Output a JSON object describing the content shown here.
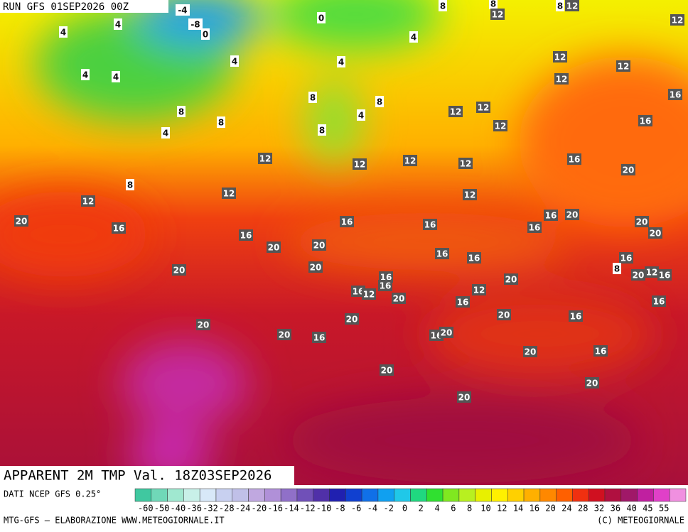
{
  "header": {
    "run": "RUN GFS 01SEP2026 00Z"
  },
  "map": {
    "title": "APPARENT 2M TMP Val. 18Z03SEP2026",
    "labels": [
      "-4",
      "-8",
      "0",
      "0",
      "8",
      "8",
      "12",
      "8",
      "12",
      "12",
      "4",
      "4",
      "4",
      "4",
      "4",
      "4",
      "4",
      "12",
      "12",
      "12",
      "16",
      "8",
      "8",
      "8",
      "8",
      "4",
      "4",
      "12",
      "12",
      "12",
      "16",
      "8",
      "12",
      "12",
      "12",
      "12",
      "16",
      "20",
      "8",
      "12",
      "12",
      "12",
      "20",
      "16",
      "16",
      "16",
      "16",
      "20",
      "16",
      "20",
      "20",
      "16",
      "20",
      "20",
      "16",
      "16",
      "16",
      "20",
      "20",
      "16",
      "8",
      "20",
      "12",
      "16",
      "16",
      "12",
      "16",
      "20",
      "12",
      "20",
      "16",
      "16",
      "20",
      "16",
      "20",
      "20",
      "20",
      "16",
      "16",
      "20",
      "20",
      "16",
      "20",
      "20",
      "20"
    ]
  },
  "footer": {
    "source": "DATI NCEP GFS 0.25°",
    "scale": [
      "-60",
      "-50",
      "-40",
      "-36",
      "-32",
      "-28",
      "-24",
      "-20",
      "-16",
      "-14",
      "-12",
      "-10",
      "-8",
      "-6",
      "-4",
      "-2",
      "0",
      "2",
      "4",
      "6",
      "8",
      "10",
      "12",
      "14",
      "16",
      "20",
      "24",
      "28",
      "32",
      "36",
      "40",
      "45",
      "55"
    ],
    "credit": "MTG-GFS — ELABORAZIONE WWW.METEOGIORNALE.IT",
    "copyright": "(C) METEOGIORNALE"
  }
}
